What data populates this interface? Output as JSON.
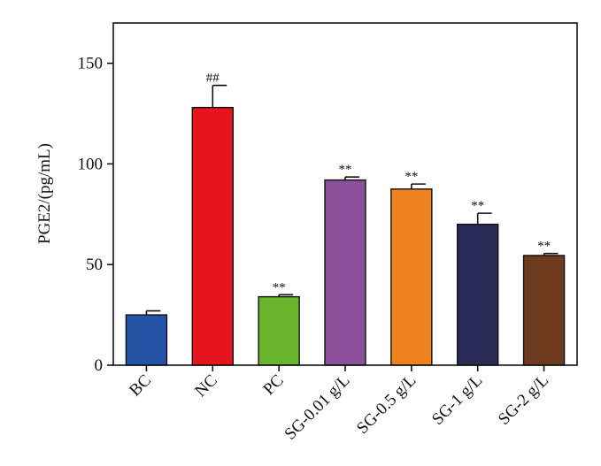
{
  "chart_data": {
    "type": "bar",
    "title": "",
    "xlabel": "",
    "ylabel": "PGE2/(pg/mL)",
    "ylim": [
      0,
      170
    ],
    "yticks": [
      0,
      50,
      100,
      150
    ],
    "grid": false,
    "categories": [
      "BC",
      "NC",
      "PC",
      "SG-0.01 g/L",
      "SG-0.5 g/L",
      "SG-1 g/L",
      "SG-2 g/L"
    ],
    "values": [
      25,
      128,
      34,
      92,
      87.5,
      70,
      54.5
    ],
    "errors": [
      2,
      11,
      1,
      1.5,
      2.5,
      5.5,
      1
    ],
    "annotations": [
      "",
      "##",
      "**",
      "**",
      "**",
      "**",
      "**"
    ],
    "colors": [
      "#2553a6",
      "#e8141d",
      "#69b52e",
      "#8b4f9c",
      "#ef821f",
      "#292a55",
      "#6e3b1f"
    ]
  }
}
